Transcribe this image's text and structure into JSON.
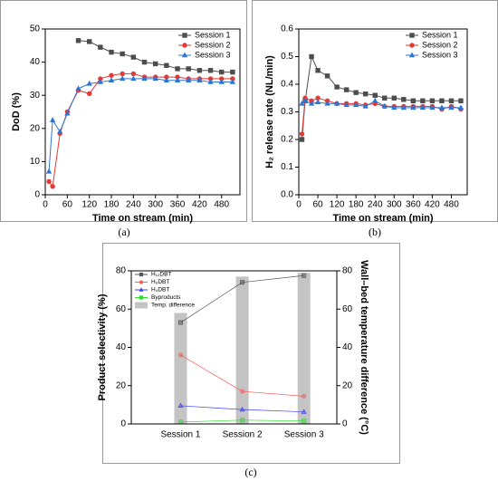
{
  "chart_data": [
    {
      "type": "line",
      "caption": "(a)",
      "xlabel": "Time on stream (min)",
      "ylabel": "DoD (%)",
      "x": [
        10,
        20,
        40,
        60,
        90,
        120,
        150,
        180,
        210,
        240,
        270,
        300,
        330,
        360,
        390,
        420,
        450,
        480,
        510
      ],
      "xlim": [
        0,
        530
      ],
      "xticks": [
        0,
        60,
        120,
        180,
        240,
        300,
        360,
        420,
        480
      ],
      "ylim": [
        0,
        50
      ],
      "yticks": [
        0,
        10,
        20,
        30,
        40,
        50
      ],
      "legend": "upper right",
      "series": [
        {
          "name": "Session 1",
          "color": "#4d4d4d",
          "marker": "square",
          "values": [
            null,
            null,
            null,
            null,
            46.5,
            46.2,
            44.5,
            43,
            42.5,
            41.5,
            40,
            39.5,
            39,
            38,
            38,
            37.5,
            37.5,
            37,
            37
          ]
        },
        {
          "name": "Session 2",
          "color": "#e53935",
          "marker": "circle",
          "values": [
            4,
            2.5,
            18.5,
            25,
            31.5,
            30.5,
            35,
            36,
            36.5,
            36.5,
            35.5,
            35.5,
            35.5,
            35.5,
            35,
            35,
            35,
            35,
            35
          ]
        },
        {
          "name": "Session 3",
          "color": "#2f74d0",
          "marker": "triangle",
          "values": [
            7,
            22.5,
            19,
            24.5,
            32,
            33.5,
            34,
            34.5,
            35,
            35,
            35,
            35,
            34.5,
            34.5,
            34.5,
            34.5,
            34,
            34,
            34
          ]
        }
      ]
    },
    {
      "type": "line",
      "caption": "(b)",
      "xlabel": "Time on stream (min)",
      "ylabel": "H₂ release rate (NL/min)",
      "x": [
        10,
        20,
        40,
        60,
        90,
        120,
        150,
        180,
        210,
        240,
        270,
        300,
        330,
        360,
        390,
        420,
        450,
        480,
        510
      ],
      "xlim": [
        0,
        530
      ],
      "xticks": [
        0,
        60,
        120,
        180,
        240,
        300,
        360,
        420,
        480
      ],
      "ylim": [
        0,
        0.6
      ],
      "yticks": [
        {
          "value": 0,
          "label": "0.0"
        },
        0.1,
        0.2,
        0.3,
        0.4,
        0.5,
        0.6
      ],
      "legend": "upper right",
      "series": [
        {
          "name": "Session 1",
          "color": "#4d4d4d",
          "marker": "square",
          "values": [
            0.2,
            0.34,
            0.5,
            0.45,
            0.43,
            0.39,
            0.38,
            0.37,
            0.365,
            0.36,
            0.35,
            0.35,
            0.345,
            0.34,
            0.34,
            0.34,
            0.34,
            0.34,
            0.34
          ]
        },
        {
          "name": "Session 2",
          "color": "#e53935",
          "marker": "circle",
          "values": [
            0.22,
            0.35,
            0.34,
            0.35,
            0.34,
            0.33,
            0.33,
            0.33,
            0.325,
            0.33,
            0.32,
            0.32,
            0.32,
            0.32,
            0.32,
            0.32,
            0.31,
            0.32,
            0.31
          ]
        },
        {
          "name": "Session 3",
          "color": "#2f74d0",
          "marker": "triangle",
          "values": [
            0.33,
            0.34,
            0.33,
            0.335,
            0.33,
            0.33,
            0.325,
            0.325,
            0.32,
            0.34,
            0.32,
            0.315,
            0.315,
            0.315,
            0.315,
            0.315,
            0.315,
            0.315,
            0.315
          ]
        }
      ]
    },
    {
      "type": "combo",
      "caption": "(c)",
      "ylabel": "Product selectivity (%)",
      "y2label": "Wall–bed temperature difference (°C)",
      "categories": [
        "Session 1",
        "Session 2",
        "Session 3"
      ],
      "ylim": [
        0,
        80
      ],
      "yticks": [
        0,
        20,
        40,
        60,
        80
      ],
      "y2lim": [
        0,
        80
      ],
      "y2ticks": [
        0,
        20,
        40,
        60,
        80
      ],
      "legend": "upper left",
      "series": [
        {
          "name": "H₁₂DBT",
          "color": "#555555",
          "marker": "square",
          "values": [
            53,
            74,
            77.5
          ]
        },
        {
          "name": "H₆DBT",
          "color": "#ff5a5a",
          "marker": "circle",
          "values": [
            36,
            17,
            14.5
          ]
        },
        {
          "name": "H₄DBT",
          "color": "#3b3bff",
          "marker": "triangle",
          "values": [
            9.5,
            7.5,
            6.3
          ]
        },
        {
          "name": "Byproducts",
          "color": "#2ee02e",
          "marker": "square",
          "values": [
            1,
            2,
            1.5
          ]
        },
        {
          "name": "Temp. difference",
          "type": "bar",
          "axis": "y2",
          "color": "#c4c4c4",
          "values": [
            58,
            77,
            79
          ]
        }
      ]
    }
  ]
}
